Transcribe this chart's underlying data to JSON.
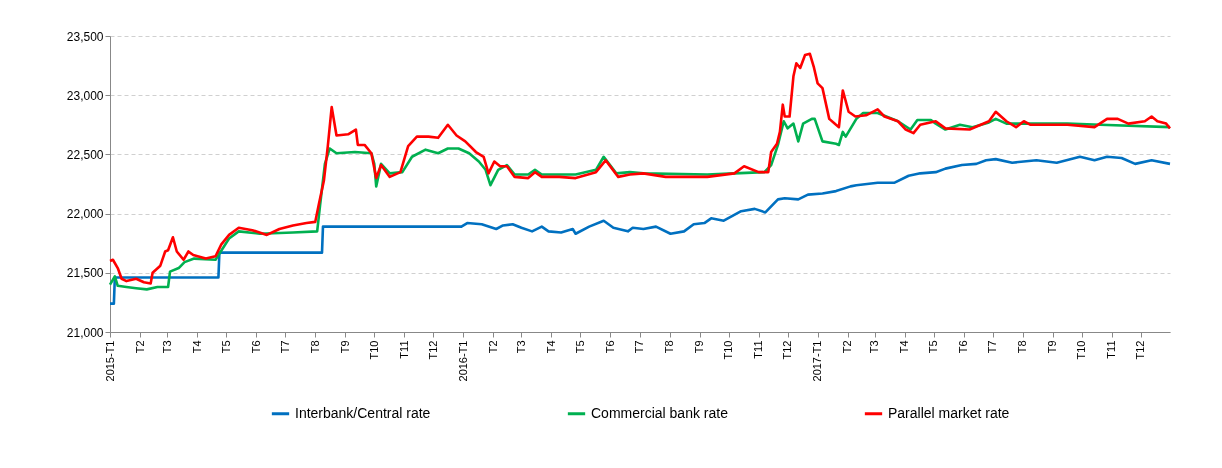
{
  "chart_data": {
    "type": "line",
    "xlim": [
      "2015-01-01",
      "2017-12-31"
    ],
    "xticks": [
      {
        "value": "2015-01-01",
        "label": "2015-T1"
      },
      {
        "value": "2015-02-01",
        "label": "T2"
      },
      {
        "value": "2015-03-01",
        "label": "T3"
      },
      {
        "value": "2015-04-01",
        "label": "T4"
      },
      {
        "value": "2015-05-01",
        "label": "T5"
      },
      {
        "value": "2015-06-01",
        "label": "T6"
      },
      {
        "value": "2015-07-01",
        "label": "T7"
      },
      {
        "value": "2015-08-01",
        "label": "T8"
      },
      {
        "value": "2015-09-01",
        "label": "T9"
      },
      {
        "value": "2015-10-01",
        "label": "T10"
      },
      {
        "value": "2015-11-01",
        "label": "T11"
      },
      {
        "value": "2015-12-01",
        "label": "T12"
      },
      {
        "value": "2016-01-01",
        "label": "2016-T1"
      },
      {
        "value": "2016-02-01",
        "label": "T2"
      },
      {
        "value": "2016-03-01",
        "label": "T3"
      },
      {
        "value": "2016-04-01",
        "label": "T4"
      },
      {
        "value": "2016-05-01",
        "label": "T5"
      },
      {
        "value": "2016-06-01",
        "label": "T6"
      },
      {
        "value": "2016-07-01",
        "label": "T7"
      },
      {
        "value": "2016-08-01",
        "label": "T8"
      },
      {
        "value": "2016-09-01",
        "label": "T9"
      },
      {
        "value": "2016-10-01",
        "label": "T10"
      },
      {
        "value": "2016-11-01",
        "label": "T11"
      },
      {
        "value": "2016-12-01",
        "label": "T12"
      },
      {
        "value": "2017-01-01",
        "label": "2017-T1"
      },
      {
        "value": "2017-02-01",
        "label": "T2"
      },
      {
        "value": "2017-03-01",
        "label": "T3"
      },
      {
        "value": "2017-04-01",
        "label": "T4"
      },
      {
        "value": "2017-05-01",
        "label": "T5"
      },
      {
        "value": "2017-06-01",
        "label": "T6"
      },
      {
        "value": "2017-07-01",
        "label": "T7"
      },
      {
        "value": "2017-08-01",
        "label": "T8"
      },
      {
        "value": "2017-09-01",
        "label": "T9"
      },
      {
        "value": "2017-10-01",
        "label": "T10"
      },
      {
        "value": "2017-11-01",
        "label": "T11"
      },
      {
        "value": "2017-12-01",
        "label": "T12"
      }
    ],
    "ylim": [
      21000,
      23500
    ],
    "yticks": [
      {
        "value": 21000,
        "label": "21,000"
      },
      {
        "value": 21500,
        "label": "21,500"
      },
      {
        "value": 22000,
        "label": "22,000"
      },
      {
        "value": 22500,
        "label": "22,500"
      },
      {
        "value": 23000,
        "label": "23,000"
      },
      {
        "value": 23500,
        "label": "23,500"
      }
    ],
    "grid": "y",
    "legend": "bottom",
    "series": [
      {
        "name": "Interbank/Central rate",
        "color": "#0070c0",
        "x": [
          "2015-01-01",
          "2015-01-05",
          "2015-01-06",
          "2015-04-23",
          "2015-04-24",
          "2015-08-08",
          "2015-08-09",
          "2015-12-30",
          "2016-01-05",
          "2016-01-20",
          "2016-02-04",
          "2016-02-11",
          "2016-02-21",
          "2016-03-01",
          "2016-03-12",
          "2016-03-22",
          "2016-03-29",
          "2016-04-11",
          "2016-04-23",
          "2016-04-26",
          "2016-05-10",
          "2016-05-25",
          "2016-06-04",
          "2016-06-19",
          "2016-06-24",
          "2016-07-05",
          "2016-07-18",
          "2016-08-02",
          "2016-08-16",
          "2016-08-26",
          "2016-09-06",
          "2016-09-13",
          "2016-09-26",
          "2016-10-14",
          "2016-10-28",
          "2016-11-08",
          "2016-11-21",
          "2016-11-28",
          "2016-12-12",
          "2016-12-22",
          "2017-01-06",
          "2017-01-20",
          "2017-02-04",
          "2017-02-10",
          "2017-03-04",
          "2017-03-21",
          "2017-04-05",
          "2017-04-17",
          "2017-05-03",
          "2017-05-13",
          "2017-05-30",
          "2017-06-14",
          "2017-06-24",
          "2017-07-04",
          "2017-07-21",
          "2017-08-15",
          "2017-09-05",
          "2017-09-29",
          "2017-10-14",
          "2017-10-27",
          "2017-11-11",
          "2017-11-25",
          "2017-12-12",
          "2017-12-31"
        ],
        "values": [
          21240,
          21240,
          21460,
          21460,
          21670,
          21670,
          21890,
          21890,
          21920,
          21910,
          21870,
          21900,
          21910,
          21880,
          21850,
          21890,
          21850,
          21840,
          21870,
          21830,
          21890,
          21940,
          21880,
          21850,
          21880,
          21870,
          21890,
          21830,
          21850,
          21910,
          21920,
          21960,
          21940,
          22020,
          22040,
          22010,
          22120,
          22130,
          22120,
          22160,
          22170,
          22190,
          22230,
          22240,
          22260,
          22260,
          22320,
          22340,
          22350,
          22380,
          22410,
          22420,
          22450,
          22460,
          22430,
          22450,
          22430,
          22480,
          22450,
          22480,
          22470,
          22420,
          22450,
          22420
        ]
      },
      {
        "name": "Commercial bank rate",
        "color": "#00b050",
        "x": [
          "2015-01-01",
          "2015-01-06",
          "2015-01-09",
          "2015-01-18",
          "2015-01-28",
          "2015-02-08",
          "2015-02-19",
          "2015-03-02",
          "2015-03-04",
          "2015-03-13",
          "2015-03-19",
          "2015-03-29",
          "2015-04-20",
          "2015-05-04",
          "2015-05-14",
          "2015-06-05",
          "2015-07-09",
          "2015-08-03",
          "2015-08-06",
          "2015-08-11",
          "2015-08-16",
          "2015-08-23",
          "2015-09-11",
          "2015-09-28",
          "2015-10-01",
          "2015-10-03",
          "2015-10-08",
          "2015-10-17",
          "2015-10-30",
          "2015-11-09",
          "2015-11-23",
          "2015-12-06",
          "2015-12-16",
          "2015-12-27",
          "2016-01-07",
          "2016-01-17",
          "2016-01-24",
          "2016-01-29",
          "2016-02-06",
          "2016-02-15",
          "2016-02-23",
          "2016-03-08",
          "2016-03-15",
          "2016-03-22",
          "2016-04-26",
          "2016-05-17",
          "2016-05-25",
          "2016-06-07",
          "2016-06-21",
          "2016-07-05",
          "2016-09-09",
          "2016-10-07",
          "2016-11-07",
          "2016-11-14",
          "2016-11-21",
          "2016-11-27",
          "2016-12-01",
          "2016-12-07",
          "2016-12-12",
          "2016-12-17",
          "2016-12-26",
          "2016-12-29",
          "2017-01-06",
          "2017-01-20",
          "2017-01-23",
          "2017-01-27",
          "2017-01-30",
          "2017-02-10",
          "2017-02-17",
          "2017-03-04",
          "2017-03-25",
          "2017-04-07",
          "2017-04-14",
          "2017-04-28",
          "2017-05-03",
          "2017-05-13",
          "2017-05-28",
          "2017-06-10",
          "2017-06-27",
          "2017-07-04",
          "2017-07-15",
          "2017-09-16",
          "2017-10-20",
          "2017-12-31"
        ],
        "values": [
          21400,
          21470,
          21390,
          21380,
          21370,
          21360,
          21380,
          21380,
          21510,
          21540,
          21590,
          21620,
          21610,
          21790,
          21850,
          21830,
          21840,
          21850,
          22070,
          22420,
          22550,
          22510,
          22520,
          22510,
          22420,
          22230,
          22420,
          22340,
          22350,
          22480,
          22540,
          22510,
          22550,
          22550,
          22510,
          22440,
          22370,
          22240,
          22370,
          22410,
          22330,
          22330,
          22370,
          22330,
          22330,
          22370,
          22480,
          22340,
          22350,
          22340,
          22330,
          22340,
          22350,
          22410,
          22580,
          22780,
          22720,
          22760,
          22610,
          22760,
          22800,
          22800,
          22610,
          22590,
          22580,
          22690,
          22650,
          22800,
          22850,
          22850,
          22780,
          22710,
          22790,
          22790,
          22760,
          22710,
          22750,
          22730,
          22770,
          22800,
          22760,
          22760,
          22750,
          22730
        ]
      },
      {
        "name": "Parallel market rate",
        "color": "#ff0000",
        "x": [
          "2015-01-01",
          "2015-01-04",
          "2015-01-09",
          "2015-01-13",
          "2015-01-18",
          "2015-01-28",
          "2015-02-05",
          "2015-02-12",
          "2015-02-14",
          "2015-02-22",
          "2015-02-27",
          "2015-03-02",
          "2015-03-07",
          "2015-03-11",
          "2015-03-18",
          "2015-03-23",
          "2015-03-28",
          "2015-04-10",
          "2015-04-20",
          "2015-04-26",
          "2015-05-04",
          "2015-05-14",
          "2015-05-28",
          "2015-06-12",
          "2015-06-25",
          "2015-07-09",
          "2015-07-23",
          "2015-08-01",
          "2015-08-05",
          "2015-08-10",
          "2015-08-14",
          "2015-08-18",
          "2015-08-23",
          "2015-09-04",
          "2015-09-12",
          "2015-09-14",
          "2015-09-21",
          "2015-09-28",
          "2015-10-03",
          "2015-10-08",
          "2015-10-17",
          "2015-10-28",
          "2015-11-05",
          "2015-11-14",
          "2015-11-26",
          "2015-12-06",
          "2015-12-16",
          "2015-12-25",
          "2016-01-03",
          "2016-01-14",
          "2016-01-22",
          "2016-01-27",
          "2016-02-02",
          "2016-02-08",
          "2016-02-15",
          "2016-02-23",
          "2016-03-08",
          "2016-03-15",
          "2016-03-22",
          "2016-04-09",
          "2016-04-26",
          "2016-05-17",
          "2016-05-27",
          "2016-06-09",
          "2016-06-21",
          "2016-07-05",
          "2016-07-28",
          "2016-09-09",
          "2016-10-07",
          "2016-10-17",
          "2016-11-01",
          "2016-11-11",
          "2016-11-14",
          "2016-11-20",
          "2016-11-23",
          "2016-11-26",
          "2016-11-28",
          "2016-12-03",
          "2016-12-07",
          "2016-12-10",
          "2016-12-14",
          "2016-12-19",
          "2016-12-24",
          "2016-12-28",
          "2017-01-01",
          "2017-01-06",
          "2017-01-13",
          "2017-01-20",
          "2017-01-23",
          "2017-01-27",
          "2017-02-02",
          "2017-02-09",
          "2017-02-20",
          "2017-03-04",
          "2017-03-11",
          "2017-03-25",
          "2017-04-02",
          "2017-04-10",
          "2017-04-17",
          "2017-05-03",
          "2017-05-13",
          "2017-06-07",
          "2017-06-27",
          "2017-07-04",
          "2017-07-15",
          "2017-07-25",
          "2017-08-02",
          "2017-08-09",
          "2017-09-16",
          "2017-10-14",
          "2017-10-27",
          "2017-11-07",
          "2017-11-18",
          "2017-12-05",
          "2017-12-12",
          "2017-12-18",
          "2017-12-27",
          "2017-12-31"
        ],
        "values": [
          21600,
          21610,
          21540,
          21450,
          21430,
          21450,
          21420,
          21410,
          21500,
          21560,
          21680,
          21690,
          21800,
          21680,
          21610,
          21680,
          21650,
          21620,
          21640,
          21740,
          21820,
          21880,
          21860,
          21820,
          21870,
          21900,
          21920,
          21930,
          22090,
          22280,
          22570,
          22900,
          22660,
          22670,
          22710,
          22580,
          22580,
          22510,
          22300,
          22410,
          22310,
          22350,
          22570,
          22650,
          22650,
          22640,
          22750,
          22660,
          22610,
          22520,
          22480,
          22340,
          22440,
          22400,
          22400,
          22310,
          22300,
          22350,
          22310,
          22310,
          22300,
          22350,
          22450,
          22310,
          22330,
          22340,
          22310,
          22310,
          22340,
          22400,
          22350,
          22350,
          22520,
          22590,
          22690,
          22920,
          22820,
          22820,
          23160,
          23270,
          23230,
          23340,
          23350,
          23240,
          23100,
          23060,
          22800,
          22750,
          22730,
          23040,
          22860,
          22820,
          22830,
          22880,
          22820,
          22780,
          22710,
          22680,
          22750,
          22780,
          22720,
          22710,
          22780,
          22860,
          22780,
          22730,
          22780,
          22750,
          22750,
          22730,
          22800,
          22800,
          22760,
          22780,
          22820,
          22780,
          22760,
          22720
        ]
      }
    ]
  }
}
